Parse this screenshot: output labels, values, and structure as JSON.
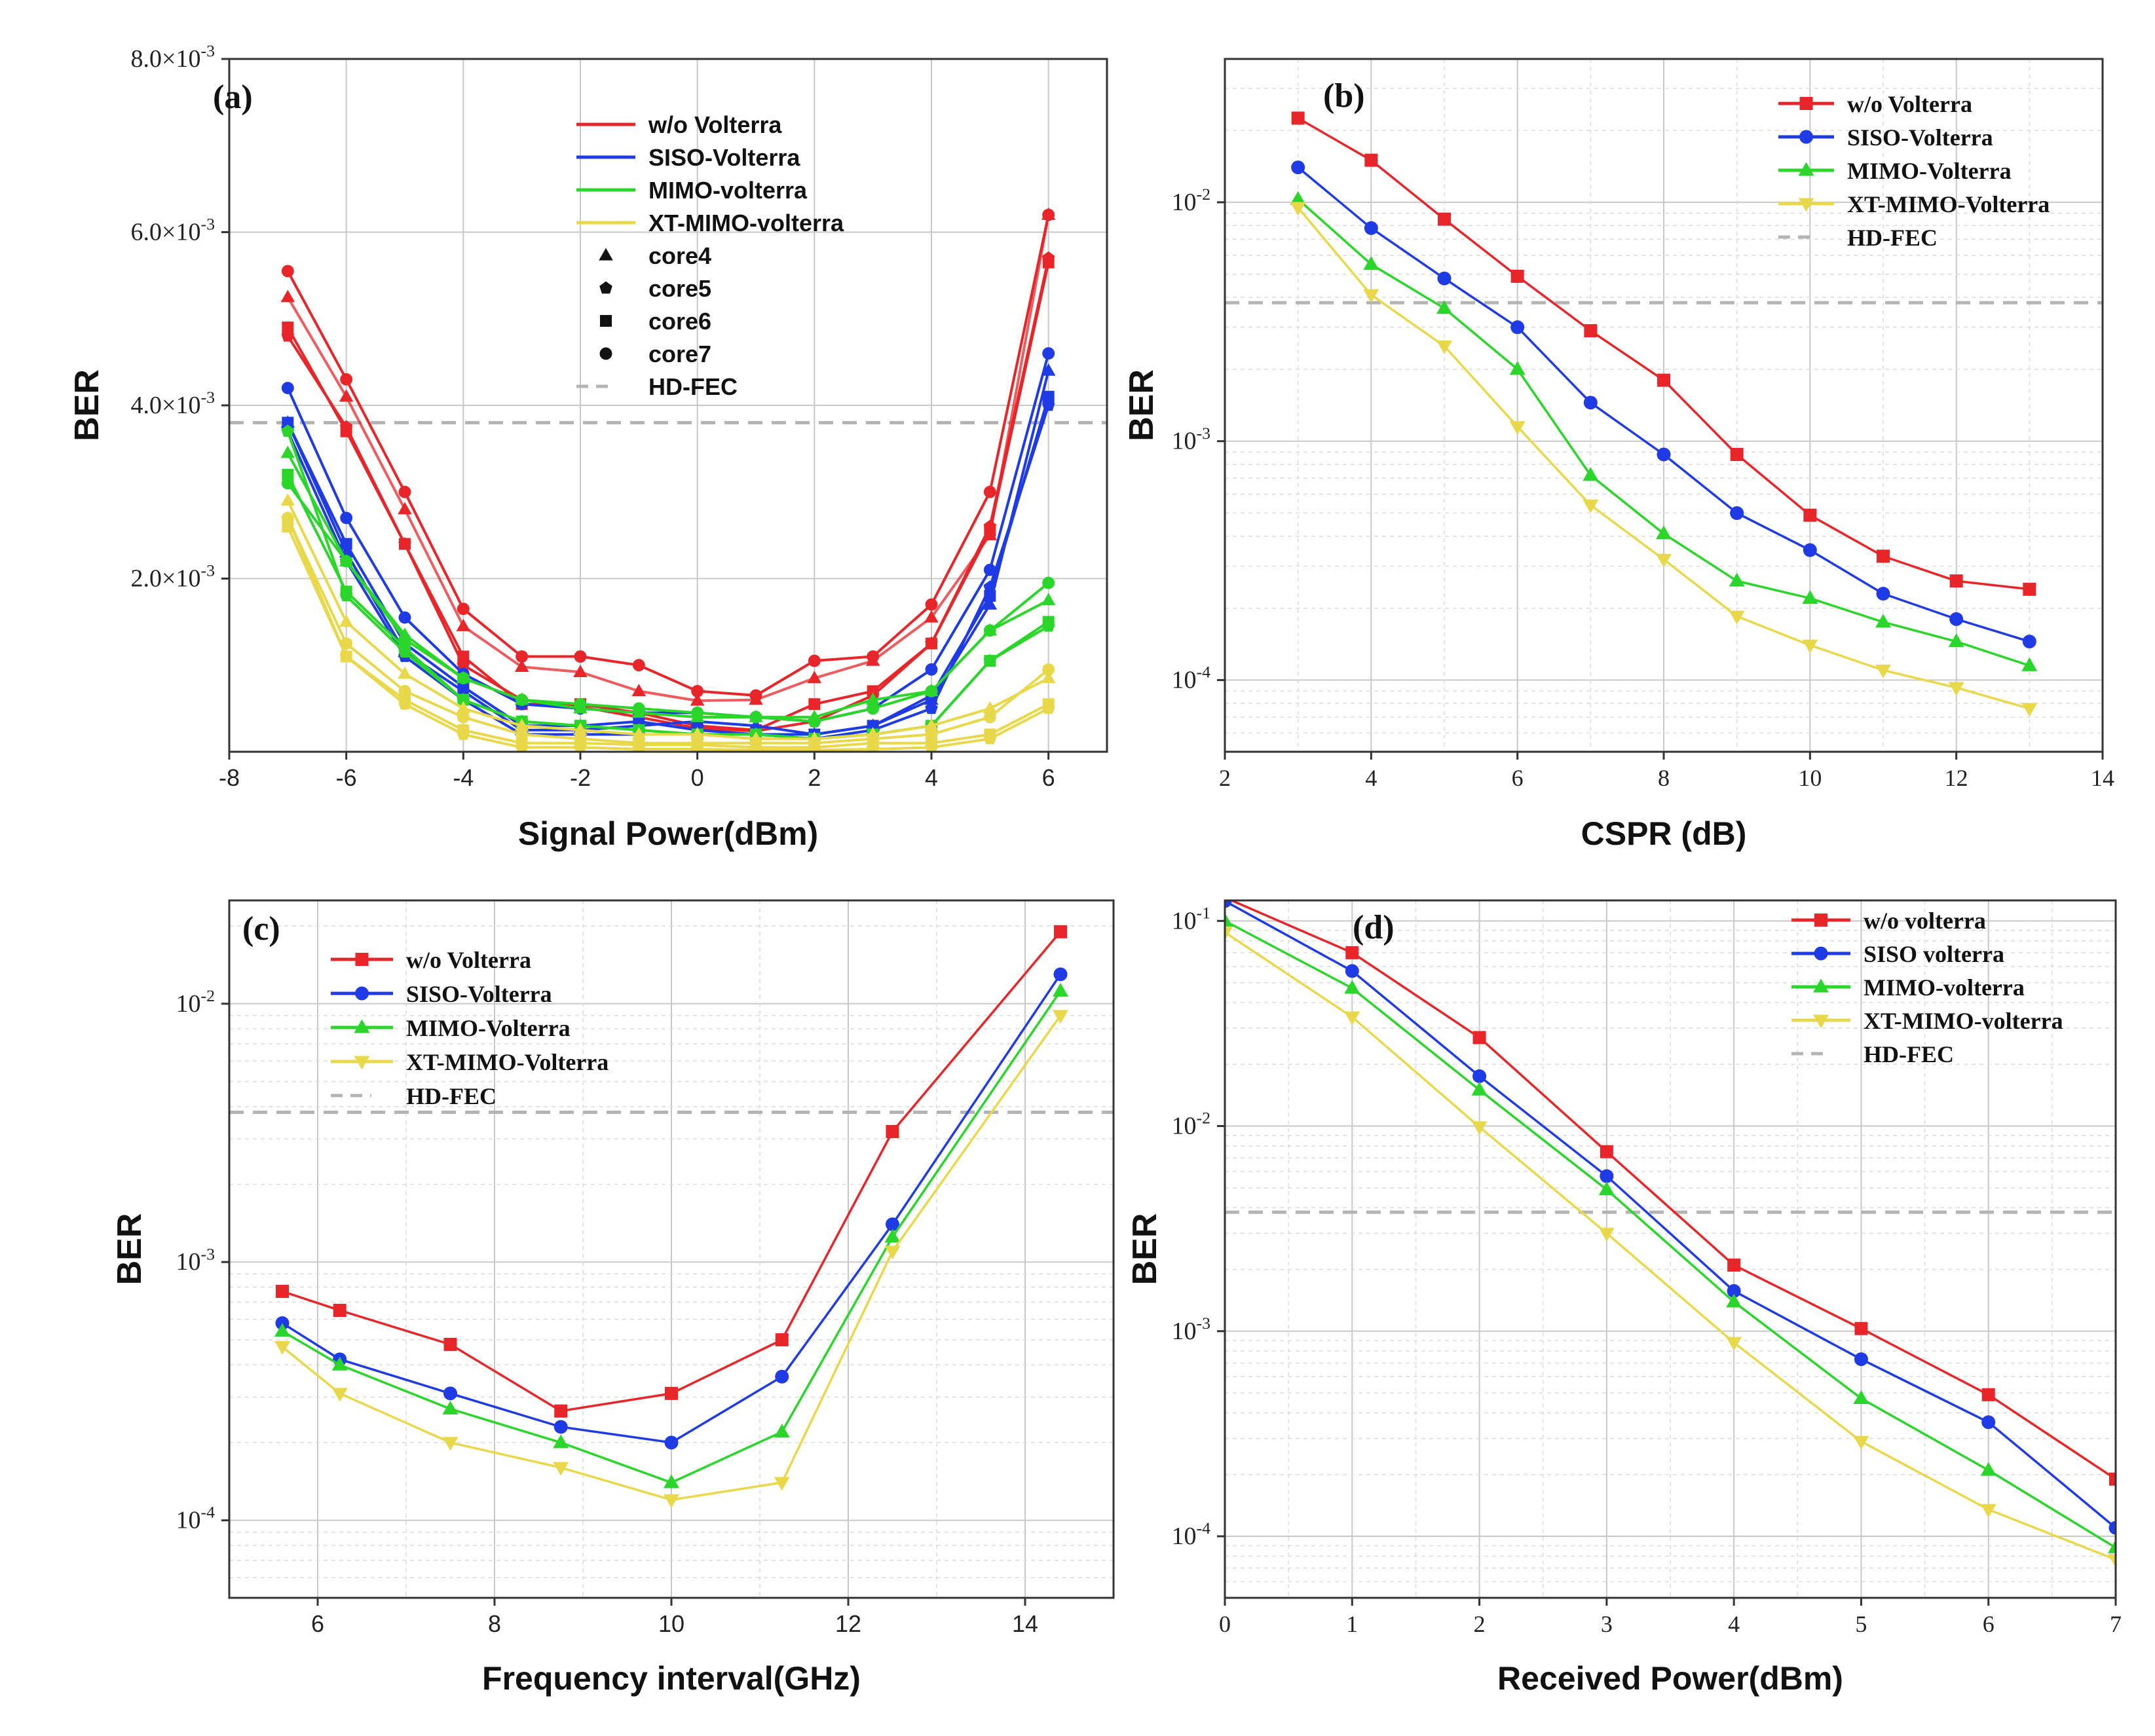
{
  "figure": {
    "series_colors": {
      "red": "#e8262a",
      "blue": "#1e3be6",
      "green": "#2ad62a",
      "yellow": "#e8d84a",
      "fec": "#b4b4b4"
    }
  },
  "chart_data": [
    {
      "id": "a",
      "panel_label": "(a)",
      "type": "line",
      "scale": "linear",
      "xlabel": "Signal Power(dBm)",
      "ylabel": "BER",
      "xlim": [
        -8,
        7
      ],
      "ylim": [
        0,
        0.008
      ],
      "xticks": [
        -8,
        -6,
        -4,
        -2,
        0,
        2,
        4,
        6
      ],
      "xtick_labels": [
        "-8",
        "-6",
        "-4",
        "-2",
        "0",
        "2",
        "4",
        "6"
      ],
      "yticks": [
        0.002,
        0.004,
        0.006,
        0.008
      ],
      "ytick_labels": [
        {
          "m": "2.0×10",
          "e": "-3"
        },
        {
          "m": "4.0×10",
          "e": "-3"
        },
        {
          "m": "6.0×10",
          "e": "-3"
        },
        {
          "m": "8.0×10",
          "e": "-3"
        }
      ],
      "hd_fec": 0.0038,
      "x": [
        -7,
        -6,
        -5,
        -4,
        -3,
        -2,
        -1,
        0,
        1,
        2,
        3,
        4,
        5,
        6
      ],
      "legend": [
        {
          "label": "w/o Volterra",
          "kind": "line",
          "color": "red"
        },
        {
          "label": "SISO-Volterra",
          "kind": "line",
          "color": "blue"
        },
        {
          "label": "MIMO-volterra",
          "kind": "line",
          "color": "green"
        },
        {
          "label": "XT-MIMO-volterra",
          "kind": "line",
          "color": "yellow"
        },
        {
          "label": "core4",
          "kind": "marker",
          "marker": "triangle"
        },
        {
          "label": "core5",
          "kind": "marker",
          "marker": "pentagon"
        },
        {
          "label": "core6",
          "kind": "marker",
          "marker": "square"
        },
        {
          "label": "core7",
          "kind": "marker",
          "marker": "circle"
        },
        {
          "label": "HD-FEC",
          "kind": "dash"
        }
      ],
      "series": [
        {
          "name": "w/o Volterra core4",
          "color": "red",
          "marker": "triangle",
          "values": [
            0.00525,
            0.0041,
            0.0028,
            0.00145,
            0.00098,
            0.00092,
            0.0007,
            0.00059,
            0.0006,
            0.00085,
            0.00105,
            0.00155,
            0.0025,
            0.0062
          ]
        },
        {
          "name": "w/o Volterra core5",
          "color": "red",
          "marker": "pentagon",
          "values": [
            0.0048,
            0.00375,
            0.0024,
            0.001,
            0.0006,
            0.00052,
            0.0004,
            0.00027,
            0.00024,
            0.00035,
            0.00065,
            0.00125,
            0.0026,
            0.0057
          ]
        },
        {
          "name": "w/o Volterra core6",
          "color": "red",
          "marker": "square",
          "values": [
            0.0049,
            0.0037,
            0.0024,
            0.0011,
            0.00055,
            0.00055,
            0.00045,
            0.0003,
            0.00025,
            0.00055,
            0.0007,
            0.00125,
            0.00255,
            0.00565
          ]
        },
        {
          "name": "w/o Volterra core7",
          "color": "red",
          "marker": "circle",
          "values": [
            0.00555,
            0.0043,
            0.003,
            0.00165,
            0.0011,
            0.0011,
            0.001,
            0.0007,
            0.00065,
            0.00105,
            0.0011,
            0.0017,
            0.003,
            0.0062
          ]
        },
        {
          "name": "SISO-Volterra core4",
          "color": "blue",
          "marker": "triangle",
          "values": [
            0.0038,
            0.0023,
            0.00115,
            0.0007,
            0.00025,
            0.00025,
            0.0003,
            0.00035,
            0.0003,
            0.0002,
            0.0003,
            0.0006,
            0.0017,
            0.0044
          ]
        },
        {
          "name": "SISO-Volterra core5",
          "color": "blue",
          "marker": "pentagon",
          "values": [
            0.0037,
            0.0022,
            0.0011,
            0.0006,
            0.0002,
            0.0002,
            0.0002,
            0.0002,
            0.0002,
            0.00015,
            0.00025,
            0.0005,
            0.0019,
            0.004
          ]
        },
        {
          "name": "SISO-Volterra core6",
          "color": "blue",
          "marker": "square",
          "values": [
            0.0038,
            0.0024,
            0.00125,
            0.00075,
            0.0003,
            0.0003,
            0.00035,
            0.00025,
            0.0002,
            0.0002,
            0.0003,
            0.00065,
            0.0018,
            0.0041
          ]
        },
        {
          "name": "SISO-Volterra core7",
          "color": "blue",
          "marker": "circle",
          "values": [
            0.0042,
            0.0027,
            0.00155,
            0.0009,
            0.00055,
            0.0005,
            0.00045,
            0.00045,
            0.0004,
            0.00035,
            0.0005,
            0.00095,
            0.0021,
            0.0046
          ]
        },
        {
          "name": "MIMO-volterra core4",
          "color": "green",
          "marker": "triangle",
          "values": [
            0.00345,
            0.0022,
            0.00135,
            0.00085,
            0.0006,
            0.0005,
            0.00045,
            0.0004,
            0.0004,
            0.0004,
            0.0006,
            0.0007,
            0.0014,
            0.00175
          ]
        },
        {
          "name": "MIMO-volterra core5",
          "color": "green",
          "marker": "pentagon",
          "values": [
            0.0037,
            0.0018,
            0.00115,
            0.0006,
            0.00035,
            0.0003,
            0.00025,
            0.0002,
            0.0002,
            0.00015,
            0.0002,
            0.0003,
            0.00105,
            0.00145
          ]
        },
        {
          "name": "MIMO-volterra core6",
          "color": "green",
          "marker": "square",
          "values": [
            0.0032,
            0.00185,
            0.0012,
            0.0006,
            0.00035,
            0.0003,
            0.00025,
            0.0002,
            0.0002,
            0.00015,
            0.0002,
            0.0003,
            0.00105,
            0.0015
          ]
        },
        {
          "name": "MIMO-volterra core7",
          "color": "green",
          "marker": "circle",
          "values": [
            0.0031,
            0.0022,
            0.0013,
            0.00085,
            0.0006,
            0.00055,
            0.0005,
            0.00045,
            0.0004,
            0.00035,
            0.0005,
            0.0007,
            0.0014,
            0.00195
          ]
        },
        {
          "name": "XT-MIMO-volterra core4",
          "color": "yellow",
          "marker": "triangle",
          "values": [
            0.0029,
            0.0015,
            0.0009,
            0.0005,
            0.0003,
            0.00025,
            0.0002,
            0.0002,
            0.00015,
            0.00015,
            0.0002,
            0.0003,
            0.0005,
            0.00085
          ]
        },
        {
          "name": "XT-MIMO-volterra core5",
          "color": "yellow",
          "marker": "pentagon",
          "values": [
            0.0027,
            0.0011,
            0.00055,
            0.0002,
            5e-05,
            5e-05,
            3e-05,
            3e-05,
            2e-05,
            2e-05,
            3e-05,
            5e-05,
            0.00015,
            0.0005
          ]
        },
        {
          "name": "XT-MIMO-volterra core6",
          "color": "yellow",
          "marker": "square",
          "values": [
            0.0026,
            0.0011,
            0.0006,
            0.00025,
            0.0001,
            0.0001,
            8e-05,
            8e-05,
            5e-05,
            5e-05,
            0.0001,
            0.0001,
            0.0002,
            0.00055
          ]
        },
        {
          "name": "XT-MIMO-volterra core7",
          "color": "yellow",
          "marker": "circle",
          "values": [
            0.0027,
            0.00125,
            0.0007,
            0.0004,
            0.0002,
            0.00015,
            0.0001,
            0.0001,
            0.0001,
            0.0001,
            0.00015,
            0.0002,
            0.0004,
            0.00095
          ]
        }
      ]
    },
    {
      "id": "b",
      "panel_label": "(b)",
      "type": "line",
      "scale": "log",
      "xlabel": "CSPR (dB)",
      "ylabel": "BER",
      "xlim": [
        2,
        14
      ],
      "ylog": [
        -4.3,
        -1.4
      ],
      "xticks": [
        2,
        4,
        6,
        8,
        10,
        12,
        14
      ],
      "xtick_labels": [
        "2",
        "4",
        "6",
        "8",
        "10",
        "12",
        "14"
      ],
      "ydecades": [
        -4,
        -3,
        -2
      ],
      "ytick_labels": [
        {
          "m": "10",
          "e": "-4"
        },
        {
          "m": "10",
          "e": "-3"
        },
        {
          "m": "10",
          "e": "-2"
        }
      ],
      "hd_fec": 0.0038,
      "x": [
        3,
        4,
        5,
        6,
        7,
        8,
        9,
        10,
        11,
        12,
        13
      ],
      "legend": [
        {
          "label": "w/o Volterra",
          "color": "red",
          "marker": "square"
        },
        {
          "label": "SISO-Volterra",
          "color": "blue",
          "marker": "circle"
        },
        {
          "label": "MIMO-Volterra",
          "color": "green",
          "marker": "triangle"
        },
        {
          "label": "XT-MIMO-Volterra",
          "color": "yellow",
          "marker": "triangle-down"
        },
        {
          "label": "HD-FEC",
          "kind": "dash"
        }
      ],
      "series": [
        {
          "name": "w/o Volterra",
          "color": "red",
          "marker": "square",
          "values": [
            0.0225,
            0.015,
            0.0085,
            0.0049,
            0.0029,
            0.0018,
            0.00088,
            0.00049,
            0.00033,
            0.00026,
            0.00024
          ]
        },
        {
          "name": "SISO-Volterra",
          "color": "blue",
          "marker": "circle",
          "values": [
            0.014,
            0.0078,
            0.0048,
            0.003,
            0.00145,
            0.00088,
            0.0005,
            0.00035,
            0.00023,
            0.00018,
            0.000145
          ]
        },
        {
          "name": "MIMO-Volterra",
          "color": "green",
          "marker": "triangle",
          "values": [
            0.0103,
            0.0055,
            0.0036,
            0.002,
            0.00072,
            0.00041,
            0.00026,
            0.00022,
            0.000175,
            0.000145,
            0.000115
          ]
        },
        {
          "name": "XT-MIMO-Volterra",
          "color": "yellow",
          "marker": "triangle-down",
          "values": [
            0.0095,
            0.0041,
            0.0025,
            0.00115,
            0.00054,
            0.00032,
            0.000185,
            0.00014,
            0.00011,
            9.3e-05,
            7.6e-05
          ]
        }
      ]
    },
    {
      "id": "c",
      "panel_label": "(c)",
      "type": "line",
      "scale": "log",
      "xlabel": "Frequency interval(GHz)",
      "ylabel": "BER",
      "xlim": [
        5,
        15
      ],
      "ylog": [
        -4.3,
        -1.6
      ],
      "xticks": [
        6,
        8,
        10,
        12,
        14
      ],
      "xtick_labels": [
        "6",
        "8",
        "10",
        "12",
        "14"
      ],
      "ydecades": [
        -4,
        -3,
        -2
      ],
      "ytick_labels": [
        {
          "m": "10",
          "e": "-4"
        },
        {
          "m": "10",
          "e": "-3"
        },
        {
          "m": "10",
          "e": "-2"
        }
      ],
      "hd_fec": 0.0038,
      "x": [
        5.6,
        6.25,
        7.5,
        8.75,
        10,
        11.25,
        12.5,
        14.4
      ],
      "legend": [
        {
          "label": "w/o Volterra",
          "color": "red",
          "marker": "square"
        },
        {
          "label": "SISO-Volterra",
          "color": "blue",
          "marker": "circle"
        },
        {
          "label": "MIMO-Volterra",
          "color": "green",
          "marker": "triangle"
        },
        {
          "label": "XT-MIMO-Volterra",
          "color": "yellow",
          "marker": "triangle-down"
        },
        {
          "label": "HD-FEC",
          "kind": "dash"
        }
      ],
      "series": [
        {
          "name": "w/o Volterra",
          "color": "red",
          "marker": "square",
          "values": [
            0.00077,
            0.00065,
            0.00048,
            0.000265,
            0.00031,
            0.0005,
            0.0032,
            0.019
          ]
        },
        {
          "name": "SISO-Volterra",
          "color": "blue",
          "marker": "circle",
          "values": [
            0.00058,
            0.00042,
            0.00031,
            0.00023,
            0.0002,
            0.00036,
            0.0014,
            0.013
          ]
        },
        {
          "name": "MIMO-Volterra",
          "color": "green",
          "marker": "triangle",
          "values": [
            0.00054,
            0.0004,
            0.00027,
            0.0002,
            0.00014,
            0.00022,
            0.00125,
            0.0112
          ]
        },
        {
          "name": "XT-MIMO-Volterra",
          "color": "yellow",
          "marker": "triangle-down",
          "values": [
            0.00047,
            0.00031,
            0.0002,
            0.00016,
            0.00012,
            0.00014,
            0.0011,
            0.009
          ]
        }
      ]
    },
    {
      "id": "d",
      "panel_label": "(d)",
      "type": "line",
      "scale": "log",
      "xlabel": "Received Power(dBm)",
      "ylabel": "BER",
      "xlim": [
        0,
        7
      ],
      "ylog": [
        -4.3,
        -0.9
      ],
      "xticks": [
        0,
        1,
        2,
        3,
        4,
        5,
        6,
        7
      ],
      "xtick_labels": [
        "0",
        "1",
        "2",
        "3",
        "4",
        "5",
        "6",
        "7"
      ],
      "ydecades": [
        -4,
        -3,
        -2,
        -1
      ],
      "ytick_labels": [
        {
          "m": "10",
          "e": "-4"
        },
        {
          "m": "10",
          "e": "-3"
        },
        {
          "m": "10",
          "e": "-2"
        },
        {
          "m": "10",
          "e": "-1"
        }
      ],
      "hd_fec": 0.0038,
      "x": [
        0,
        1,
        2,
        3,
        4,
        5,
        6,
        7
      ],
      "legend": [
        {
          "label": "w/o volterra",
          "color": "red",
          "marker": "square"
        },
        {
          "label": "SISO volterra",
          "color": "blue",
          "marker": "circle"
        },
        {
          "label": "MIMO-volterra",
          "color": "green",
          "marker": "triangle"
        },
        {
          "label": "XT-MIMO-volterra",
          "color": "yellow",
          "marker": "triangle-down"
        },
        {
          "label": "HD-FEC",
          "kind": "dash"
        }
      ],
      "series": [
        {
          "name": "w/o volterra",
          "color": "red",
          "marker": "square",
          "values": [
            0.13,
            0.07,
            0.027,
            0.0075,
            0.0021,
            0.00103,
            0.00049,
            0.00019
          ]
        },
        {
          "name": "SISO volterra",
          "color": "blue",
          "marker": "circle",
          "values": [
            0.125,
            0.057,
            0.0175,
            0.0057,
            0.00157,
            0.00073,
            0.00036,
            0.00011
          ]
        },
        {
          "name": "MIMO-volterra",
          "color": "green",
          "marker": "triangle",
          "values": [
            0.1,
            0.047,
            0.015,
            0.0049,
            0.00139,
            0.00047,
            0.00021,
            8.8e-05
          ]
        },
        {
          "name": "XT-MIMO-volterra",
          "color": "yellow",
          "marker": "triangle-down",
          "values": [
            0.088,
            0.034,
            0.0099,
            0.003,
            0.00088,
            0.00029,
            0.000135,
            7.7e-05
          ]
        }
      ]
    }
  ]
}
